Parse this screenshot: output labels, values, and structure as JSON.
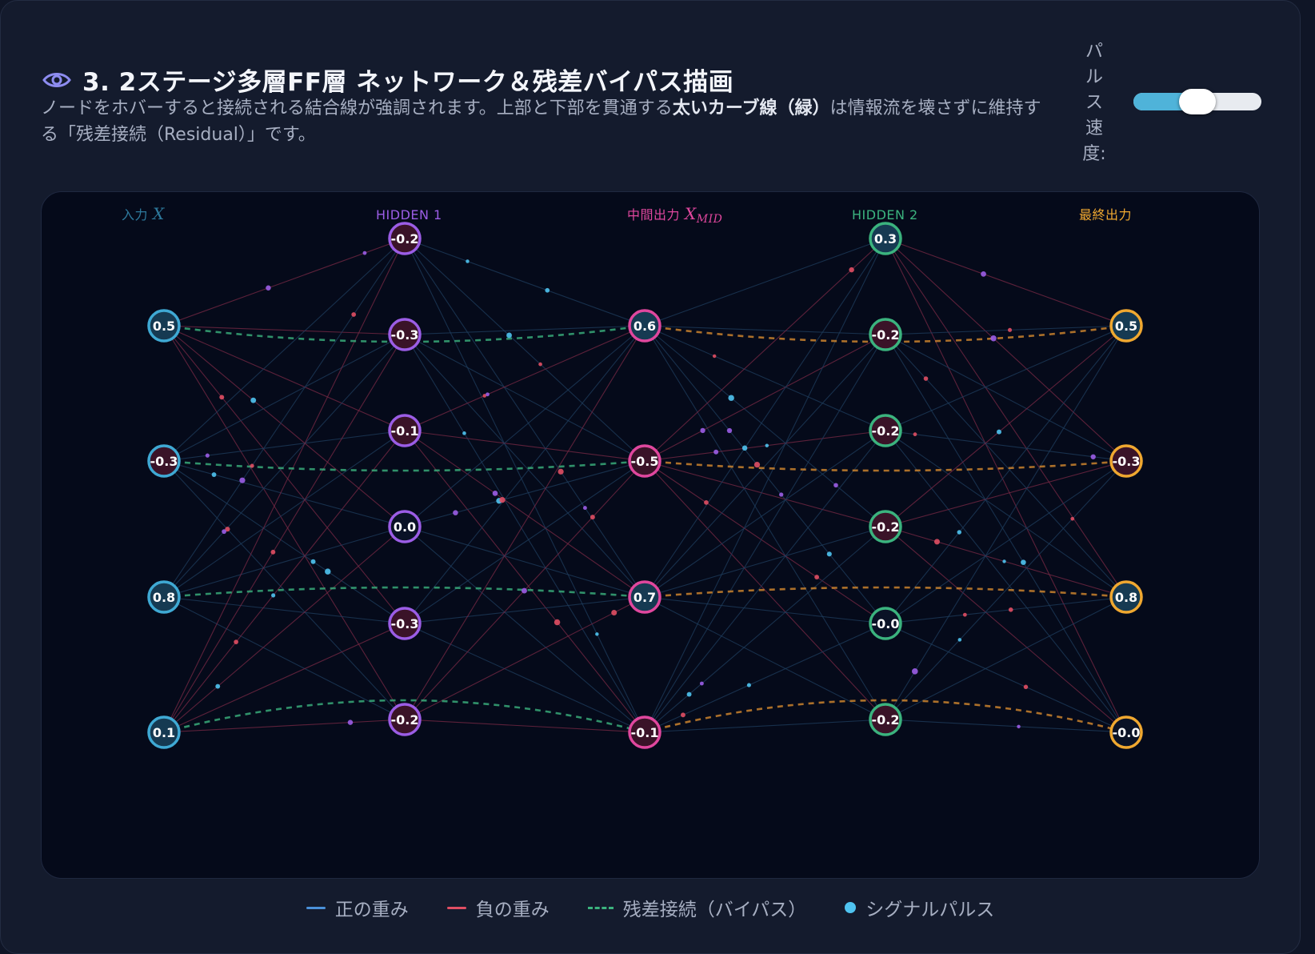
{
  "header": {
    "title": "3. 2ステージ多層FF層 ネットワーク＆残差バイパス描画",
    "desc_part1": "ノードをホバーすると接続される結合線が強調されます。上部と下部を貫通する",
    "desc_bold": "太いカーブ線（緑）",
    "desc_part2": "は情報流を壊さずに維持する「残差接続（Residual）」です。"
  },
  "speed": {
    "label": "パルス速度:",
    "value": 0.5
  },
  "network": {
    "layers": [
      {
        "label": "入力",
        "label_math": "X",
        "label_sub": "",
        "color": "#3fa9d4",
        "values": [
          "0.5",
          "-0.3",
          "0.8",
          "0.1"
        ]
      },
      {
        "label": "HIDDEN 1",
        "label_math": "",
        "label_sub": "",
        "color": "#9b5de5",
        "values": [
          "-0.2",
          "-0.3",
          "-0.1",
          "0.0",
          "-0.3",
          "-0.2"
        ]
      },
      {
        "label": "中間出力",
        "label_math": "X",
        "label_sub": "MID",
        "color": "#e0479e",
        "values": [
          "0.6",
          "-0.5",
          "0.7",
          "-0.1"
        ]
      },
      {
        "label": "HIDDEN 2",
        "label_math": "",
        "label_sub": "",
        "color": "#3bb37e",
        "values": [
          "0.3",
          "-0.2",
          "-0.2",
          "-0.2",
          "-0.0",
          "-0.2"
        ]
      },
      {
        "label": "最終出力",
        "label_math": "",
        "label_sub": "",
        "color": "#f0a830",
        "values": [
          "0.5",
          "-0.3",
          "0.8",
          "-0.0"
        ]
      }
    ],
    "residual_colors": [
      "#3bb37e",
      "#d68a2e"
    ]
  },
  "legend": [
    {
      "label": "正の重み",
      "kind": "positive",
      "color": "#4a90d9"
    },
    {
      "label": "負の重み",
      "kind": "negative",
      "color": "#e04e63"
    },
    {
      "label": "残差接続（バイパス）",
      "kind": "residual",
      "color": "#3bb37e"
    },
    {
      "label": "シグナルパルス",
      "kind": "pulse",
      "color": "#4fc3f0"
    }
  ]
}
